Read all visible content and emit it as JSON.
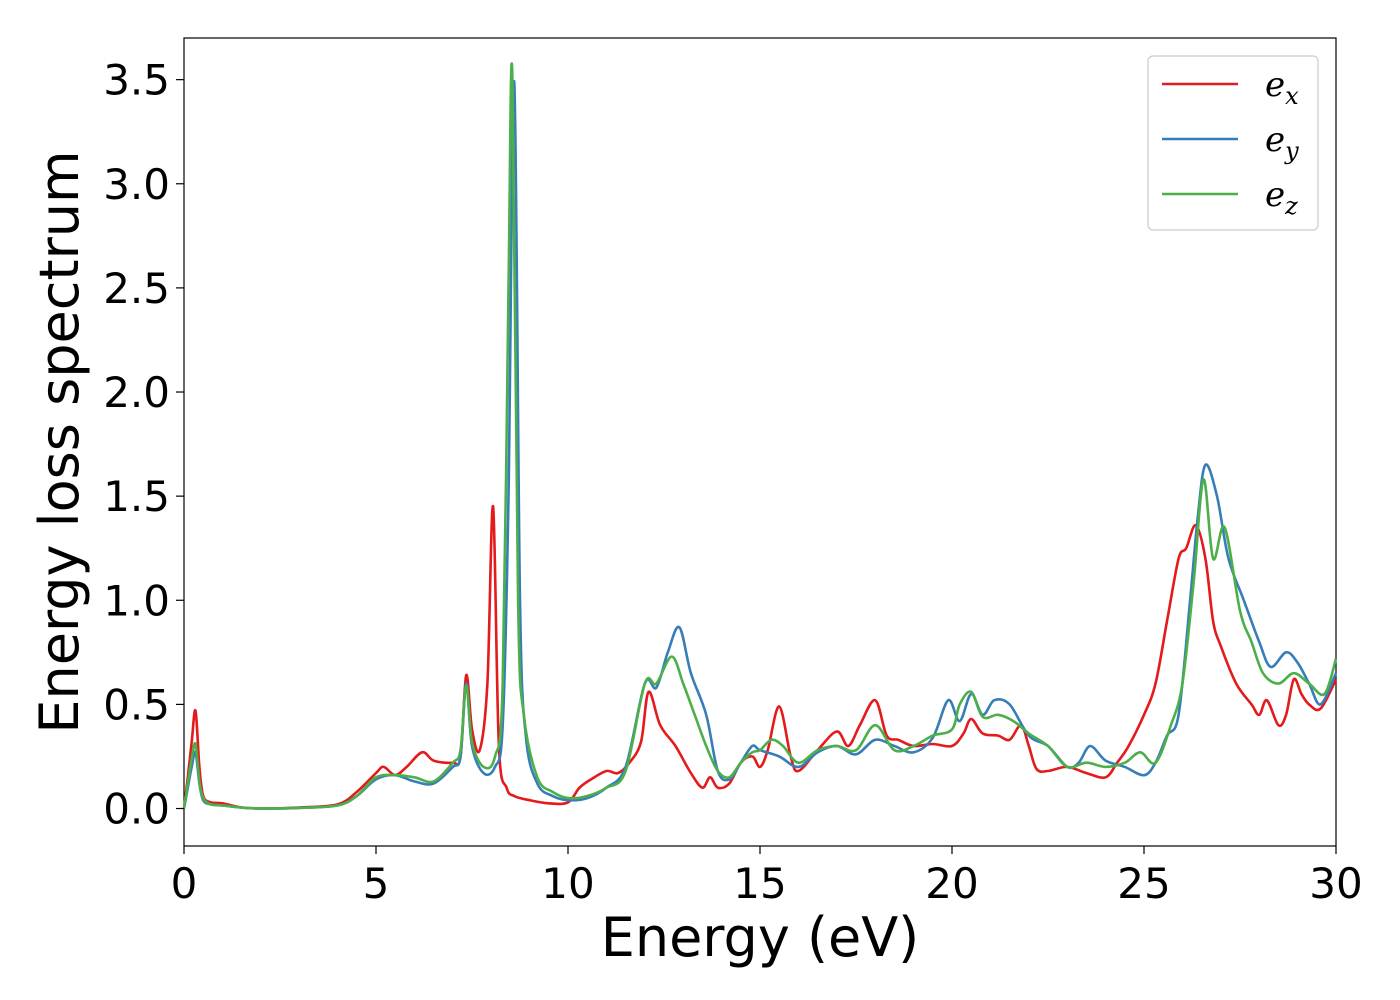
{
  "chart_data": {
    "type": "line",
    "title": "",
    "xlabel": "Energy (eV)",
    "ylabel": "Energy loss spectrum",
    "xlim": [
      0,
      30
    ],
    "ylim": [
      -0.18,
      3.7
    ],
    "xticks": [
      0,
      5,
      10,
      15,
      20,
      25,
      30
    ],
    "yticks": [
      0.0,
      0.5,
      1.0,
      1.5,
      2.0,
      2.5,
      3.0,
      3.5
    ],
    "grid": false,
    "legend_position": "top-right",
    "series": [
      {
        "name": "e_x",
        "color": "#e41a1c",
        "x": [
          0,
          0.1,
          0.2,
          0.3,
          0.4,
          0.5,
          0.7,
          1.0,
          1.5,
          2.0,
          3.0,
          4.0,
          4.5,
          5.0,
          5.2,
          5.5,
          5.8,
          6.2,
          6.5,
          7.0,
          7.2,
          7.35,
          7.5,
          7.7,
          7.9,
          8.05,
          8.2,
          8.4,
          8.6,
          9.0,
          9.5,
          10.0,
          10.3,
          10.6,
          11.0,
          11.3,
          11.6,
          11.9,
          12.1,
          12.4,
          12.8,
          13.2,
          13.5,
          13.7,
          13.9,
          14.2,
          14.5,
          14.8,
          15.0,
          15.2,
          15.5,
          15.8,
          16.0,
          16.5,
          17.0,
          17.3,
          17.6,
          18.0,
          18.3,
          18.6,
          19.0,
          19.5,
          20.0,
          20.3,
          20.5,
          20.8,
          21.2,
          21.5,
          21.8,
          22.0,
          22.2,
          22.5,
          23.0,
          23.5,
          24.0,
          24.3,
          24.6,
          25.0,
          25.3,
          25.6,
          25.9,
          26.1,
          26.35,
          26.6,
          26.8,
          27.0,
          27.4,
          27.8,
          28.0,
          28.2,
          28.5,
          28.7,
          28.9,
          29.1,
          29.3,
          29.6,
          30.0
        ],
        "y": [
          0.0,
          0.15,
          0.32,
          0.47,
          0.2,
          0.06,
          0.03,
          0.025,
          0.005,
          0.0,
          0.005,
          0.02,
          0.08,
          0.17,
          0.2,
          0.16,
          0.2,
          0.27,
          0.23,
          0.22,
          0.25,
          0.64,
          0.38,
          0.28,
          0.6,
          1.45,
          0.3,
          0.1,
          0.06,
          0.04,
          0.025,
          0.03,
          0.1,
          0.14,
          0.18,
          0.17,
          0.22,
          0.32,
          0.56,
          0.4,
          0.3,
          0.17,
          0.1,
          0.15,
          0.1,
          0.12,
          0.22,
          0.25,
          0.2,
          0.28,
          0.49,
          0.25,
          0.18,
          0.28,
          0.37,
          0.3,
          0.4,
          0.52,
          0.35,
          0.33,
          0.3,
          0.31,
          0.3,
          0.36,
          0.43,
          0.36,
          0.35,
          0.33,
          0.4,
          0.3,
          0.19,
          0.18,
          0.2,
          0.17,
          0.15,
          0.22,
          0.3,
          0.45,
          0.6,
          0.9,
          1.2,
          1.25,
          1.36,
          1.2,
          0.9,
          0.78,
          0.6,
          0.5,
          0.45,
          0.52,
          0.4,
          0.45,
          0.62,
          0.55,
          0.5,
          0.48,
          0.62
        ]
      },
      {
        "name": "e_y",
        "color": "#377eb8",
        "x": [
          0,
          0.1,
          0.2,
          0.3,
          0.4,
          0.5,
          0.7,
          1.0,
          1.5,
          2.0,
          3.0,
          4.0,
          4.5,
          5.0,
          5.5,
          6.0,
          6.5,
          7.0,
          7.2,
          7.35,
          7.5,
          7.8,
          8.1,
          8.3,
          8.45,
          8.6,
          8.75,
          8.9,
          9.2,
          9.6,
          10.0,
          10.5,
          11.0,
          11.5,
          12.0,
          12.3,
          12.6,
          12.9,
          13.2,
          13.6,
          13.9,
          14.2,
          14.5,
          14.8,
          15.0,
          15.5,
          16.0,
          16.5,
          17.0,
          17.5,
          18.0,
          18.5,
          19.0,
          19.5,
          19.9,
          20.2,
          20.5,
          20.8,
          21.1,
          21.5,
          22.0,
          22.5,
          23.0,
          23.3,
          23.6,
          24.0,
          24.5,
          25.0,
          25.3,
          25.6,
          25.9,
          26.2,
          26.4,
          26.6,
          26.9,
          27.2,
          27.6,
          28.0,
          28.3,
          28.7,
          29.0,
          29.3,
          29.6,
          30.0
        ],
        "y": [
          0.0,
          0.1,
          0.2,
          0.27,
          0.12,
          0.04,
          0.02,
          0.015,
          0.005,
          0.0,
          0.003,
          0.015,
          0.06,
          0.14,
          0.16,
          0.13,
          0.12,
          0.2,
          0.25,
          0.6,
          0.3,
          0.17,
          0.2,
          0.4,
          1.5,
          3.49,
          1.0,
          0.35,
          0.12,
          0.06,
          0.04,
          0.05,
          0.1,
          0.2,
          0.6,
          0.58,
          0.75,
          0.87,
          0.65,
          0.45,
          0.18,
          0.14,
          0.22,
          0.3,
          0.28,
          0.25,
          0.2,
          0.27,
          0.3,
          0.26,
          0.33,
          0.3,
          0.27,
          0.34,
          0.52,
          0.42,
          0.55,
          0.45,
          0.52,
          0.5,
          0.35,
          0.3,
          0.2,
          0.22,
          0.3,
          0.23,
          0.2,
          0.16,
          0.22,
          0.35,
          0.45,
          1.0,
          1.4,
          1.65,
          1.5,
          1.2,
          1.0,
          0.8,
          0.68,
          0.75,
          0.7,
          0.6,
          0.5,
          0.65
        ]
      },
      {
        "name": "e_z",
        "color": "#4daf4a",
        "x": [
          0,
          0.1,
          0.2,
          0.3,
          0.4,
          0.5,
          0.7,
          1.0,
          1.5,
          2.0,
          3.0,
          4.0,
          4.5,
          5.0,
          5.5,
          6.0,
          6.5,
          7.0,
          7.2,
          7.35,
          7.5,
          7.8,
          8.1,
          8.3,
          8.45,
          8.55,
          8.7,
          8.85,
          9.2,
          9.6,
          10.0,
          10.5,
          11.0,
          11.5,
          12.0,
          12.3,
          12.7,
          13.0,
          13.3,
          13.6,
          13.9,
          14.2,
          14.5,
          14.8,
          15.0,
          15.3,
          15.6,
          16.0,
          16.5,
          17.0,
          17.5,
          18.0,
          18.5,
          19.0,
          19.5,
          20.0,
          20.2,
          20.5,
          20.8,
          21.2,
          21.6,
          22.0,
          22.5,
          23.0,
          23.5,
          24.0,
          24.5,
          24.9,
          25.3,
          25.7,
          26.0,
          26.3,
          26.55,
          26.8,
          27.1,
          27.5,
          27.8,
          28.1,
          28.5,
          28.9,
          29.3,
          29.7,
          30.0
        ],
        "y": [
          0.0,
          0.12,
          0.24,
          0.31,
          0.13,
          0.05,
          0.02,
          0.015,
          0.005,
          0.0,
          0.003,
          0.015,
          0.06,
          0.15,
          0.16,
          0.15,
          0.13,
          0.22,
          0.28,
          0.59,
          0.32,
          0.2,
          0.25,
          0.6,
          2.5,
          3.53,
          1.0,
          0.45,
          0.15,
          0.08,
          0.05,
          0.06,
          0.1,
          0.18,
          0.6,
          0.6,
          0.73,
          0.6,
          0.45,
          0.3,
          0.18,
          0.15,
          0.22,
          0.27,
          0.28,
          0.33,
          0.3,
          0.22,
          0.28,
          0.3,
          0.28,
          0.4,
          0.28,
          0.3,
          0.35,
          0.38,
          0.5,
          0.56,
          0.44,
          0.45,
          0.42,
          0.36,
          0.3,
          0.2,
          0.22,
          0.2,
          0.22,
          0.27,
          0.22,
          0.4,
          0.6,
          1.1,
          1.58,
          1.2,
          1.35,
          0.95,
          0.8,
          0.65,
          0.6,
          0.65,
          0.6,
          0.55,
          0.72
        ]
      }
    ]
  }
}
